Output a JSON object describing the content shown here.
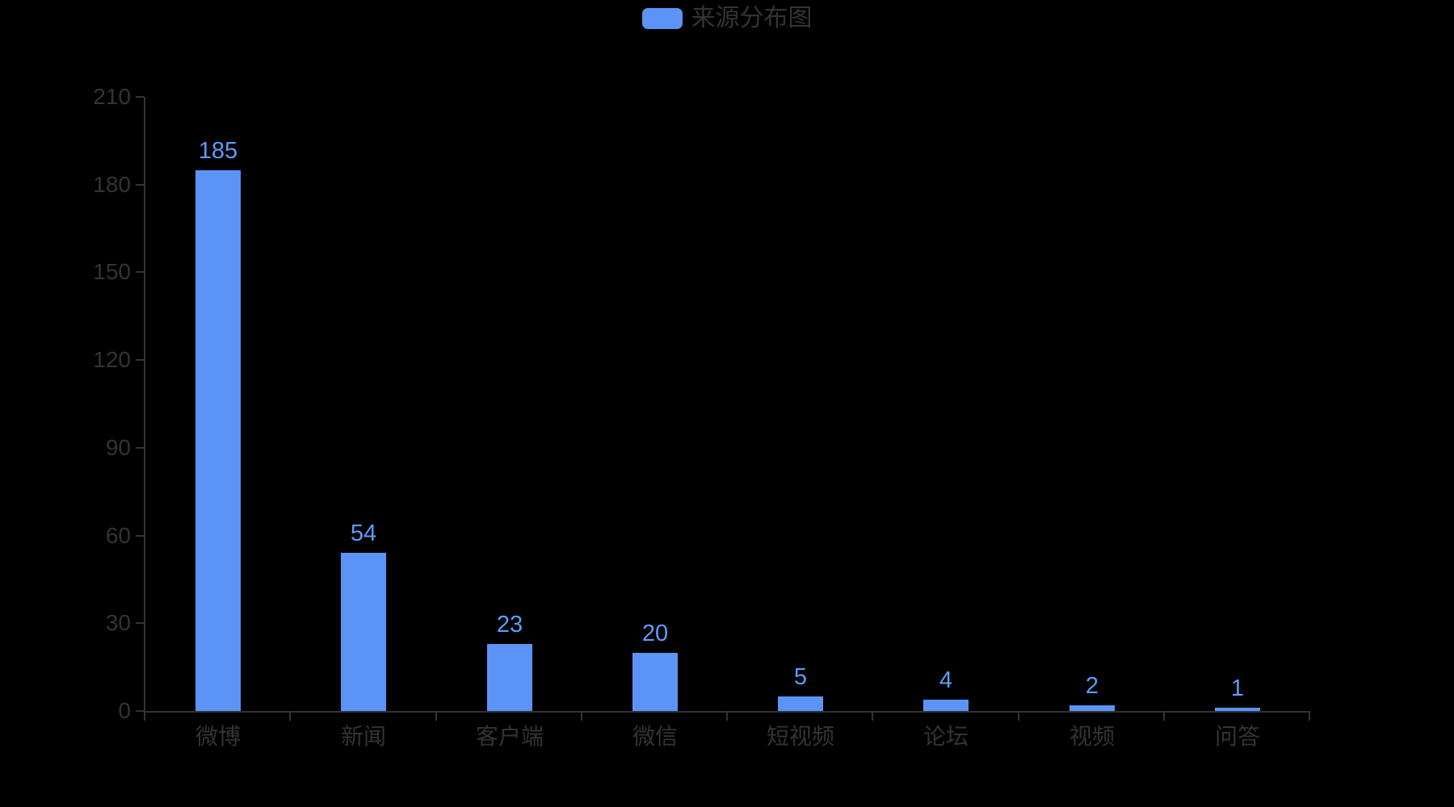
{
  "legend": {
    "label": "来源分布图"
  },
  "chart_data": {
    "type": "bar",
    "title": "来源分布图",
    "legend_entries": [
      "来源分布图"
    ],
    "legend_position": "top-center",
    "categories": [
      "微博",
      "新闻",
      "客户端",
      "微信",
      "短视频",
      "论坛",
      "视频",
      "问答"
    ],
    "values": [
      185,
      54,
      23,
      20,
      5,
      4,
      2,
      1
    ],
    "xlabel": "",
    "ylabel": "",
    "ylim": [
      0,
      210
    ],
    "y_ticks": [
      0,
      30,
      60,
      90,
      120,
      150,
      180,
      210
    ],
    "grid": "off",
    "colors": {
      "background": "#000000",
      "bar": "#5B94F6",
      "value_label": "#5E9BF8",
      "axis_line": "#333333",
      "axis_label": "#333333",
      "legend_text": "#333333",
      "legend_swatch": "#5B94F6"
    }
  }
}
